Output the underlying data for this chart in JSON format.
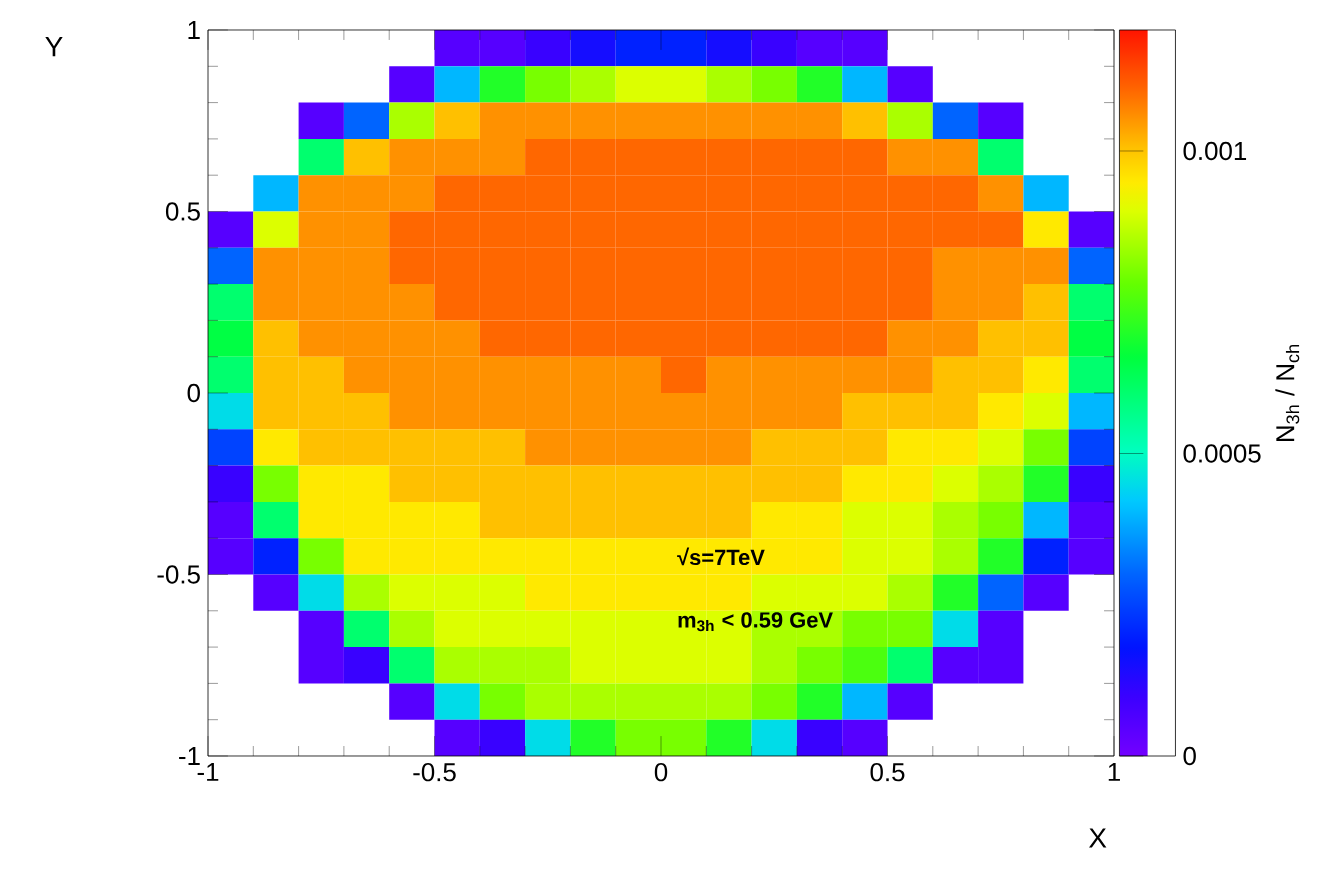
{
  "chart_data": {
    "type": "heatmap",
    "xlabel": "X",
    "ylabel": "Y",
    "clabel": "N$_{3h}$ / N$_{ch}$",
    "x": [
      -0.95,
      -0.85,
      -0.75,
      -0.65,
      -0.55,
      -0.45,
      -0.35,
      -0.25,
      -0.15,
      -0.05,
      0.05,
      0.15,
      0.25,
      0.35,
      0.45,
      0.55,
      0.65,
      0.75,
      0.85,
      0.95
    ],
    "y": [
      0.95,
      0.85,
      0.75,
      0.65,
      0.55,
      0.45,
      0.35,
      0.25,
      0.15,
      0.05,
      -0.05,
      -0.15,
      -0.25,
      -0.35,
      -0.45,
      -0.55,
      -0.65,
      -0.75,
      -0.85,
      -0.95
    ],
    "xlim": [
      -1,
      1
    ],
    "ylim": [
      -1,
      1
    ],
    "xticks": [
      -1,
      -0.5,
      0,
      0.5,
      1
    ],
    "yticks": [
      -1,
      -0.5,
      0,
      0.5,
      1
    ],
    "clim": [
      0,
      0.0012
    ],
    "cticks": [
      0,
      0.0005,
      0.001
    ],
    "annotations": [
      "√s=7TeV",
      "m$_{3h}$ < 0.59 GeV"
    ],
    "cells": [
      [
        null,
        null,
        null,
        null,
        null,
        5e-05,
        5e-05,
        0.0001,
        0.00015,
        0.0002,
        0.0002,
        0.00015,
        0.0001,
        5e-05,
        5e-05,
        null,
        null,
        null,
        null,
        null
      ],
      [
        null,
        null,
        null,
        null,
        5e-05,
        0.0004,
        0.0007,
        0.0008,
        0.00085,
        0.0009,
        0.0009,
        0.00085,
        0.0008,
        0.0007,
        0.0004,
        5e-05,
        null,
        null,
        null,
        null
      ],
      [
        null,
        null,
        5e-05,
        0.0003,
        0.00085,
        0.001,
        0.00105,
        0.00105,
        0.00105,
        0.00105,
        0.00105,
        0.00105,
        0.00105,
        0.00105,
        0.001,
        0.00085,
        0.0003,
        5e-05,
        null,
        null
      ],
      [
        null,
        null,
        0.0006,
        0.001,
        0.00105,
        0.00105,
        0.00105,
        0.0011,
        0.0011,
        0.0011,
        0.0011,
        0.0011,
        0.0011,
        0.0011,
        0.0011,
        0.00105,
        0.00105,
        0.0006,
        null,
        null
      ],
      [
        null,
        0.0004,
        0.00105,
        0.00105,
        0.00105,
        0.0011,
        0.0011,
        0.0011,
        0.0011,
        0.0011,
        0.0011,
        0.0011,
        0.0011,
        0.0011,
        0.0011,
        0.0011,
        0.0011,
        0.00105,
        0.0004,
        null
      ],
      [
        5e-05,
        0.0009,
        0.00105,
        0.00105,
        0.0011,
        0.0011,
        0.0011,
        0.0011,
        0.0011,
        0.0011,
        0.0011,
        0.0011,
        0.0011,
        0.0011,
        0.0011,
        0.0011,
        0.0011,
        0.0011,
        0.00095,
        5e-05
      ],
      [
        0.0003,
        0.00105,
        0.00105,
        0.00105,
        0.0011,
        0.0011,
        0.0011,
        0.0011,
        0.0011,
        0.0011,
        0.0011,
        0.0011,
        0.0011,
        0.0011,
        0.0011,
        0.0011,
        0.00105,
        0.00105,
        0.00105,
        0.0003
      ],
      [
        0.0006,
        0.00105,
        0.00105,
        0.00105,
        0.00105,
        0.0011,
        0.0011,
        0.0011,
        0.0011,
        0.0011,
        0.0011,
        0.0011,
        0.0011,
        0.0011,
        0.0011,
        0.0011,
        0.00105,
        0.00105,
        0.001,
        0.0006
      ],
      [
        0.00065,
        0.001,
        0.00105,
        0.00105,
        0.00105,
        0.00105,
        0.0011,
        0.0011,
        0.0011,
        0.0011,
        0.0011,
        0.0011,
        0.0011,
        0.0011,
        0.0011,
        0.00105,
        0.00105,
        0.001,
        0.001,
        0.00065
      ],
      [
        0.0006,
        0.001,
        0.001,
        0.00105,
        0.00105,
        0.00105,
        0.00105,
        0.00105,
        0.00105,
        0.00105,
        0.0011,
        0.00105,
        0.00105,
        0.00105,
        0.00105,
        0.00105,
        0.001,
        0.001,
        0.00095,
        0.0006
      ],
      [
        0.00045,
        0.001,
        0.001,
        0.001,
        0.00105,
        0.00105,
        0.00105,
        0.00105,
        0.00105,
        0.00105,
        0.00105,
        0.00105,
        0.00105,
        0.00105,
        0.001,
        0.001,
        0.001,
        0.00095,
        0.0009,
        0.0004
      ],
      [
        0.00025,
        0.00095,
        0.001,
        0.001,
        0.001,
        0.001,
        0.001,
        0.00105,
        0.00105,
        0.00105,
        0.00105,
        0.00105,
        0.001,
        0.001,
        0.001,
        0.00095,
        0.00095,
        0.0009,
        0.0008,
        0.00025
      ],
      [
        0.0001,
        0.0008,
        0.00095,
        0.00095,
        0.001,
        0.001,
        0.001,
        0.001,
        0.001,
        0.001,
        0.001,
        0.001,
        0.001,
        0.001,
        0.00095,
        0.00095,
        0.0009,
        0.00085,
        0.0007,
        0.0001
      ],
      [
        5e-05,
        0.0006,
        0.00095,
        0.00095,
        0.00095,
        0.00095,
        0.001,
        0.001,
        0.001,
        0.001,
        0.001,
        0.001,
        0.00095,
        0.00095,
        0.0009,
        0.0009,
        0.00085,
        0.0008,
        0.0004,
        5e-05
      ],
      [
        5e-05,
        0.0002,
        0.0008,
        0.00095,
        0.00095,
        0.00095,
        0.00095,
        0.00095,
        0.00095,
        0.00095,
        0.00095,
        0.00095,
        0.00095,
        0.00095,
        0.0009,
        0.0009,
        0.00085,
        0.0007,
        0.0002,
        5e-05
      ],
      [
        null,
        5e-05,
        0.00045,
        0.00085,
        0.0009,
        0.0009,
        0.0009,
        0.00095,
        0.00095,
        0.00095,
        0.00095,
        0.00095,
        0.0009,
        0.0009,
        0.0009,
        0.00085,
        0.0007,
        0.0003,
        5e-05,
        null
      ],
      [
        null,
        null,
        5e-05,
        0.0006,
        0.00085,
        0.0009,
        0.0009,
        0.0009,
        0.0009,
        0.0009,
        0.0009,
        0.0009,
        0.00085,
        0.00085,
        0.0008,
        0.0008,
        0.00045,
        5e-05,
        null,
        null
      ],
      [
        null,
        null,
        5e-05,
        0.0001,
        0.0006,
        0.00085,
        0.00085,
        0.00085,
        0.0009,
        0.0009,
        0.0009,
        0.0009,
        0.00085,
        0.0008,
        0.00075,
        0.0006,
        5e-05,
        5e-05,
        null,
        null
      ],
      [
        null,
        null,
        null,
        null,
        5e-05,
        0.00045,
        0.0008,
        0.00085,
        0.00085,
        0.00085,
        0.00085,
        0.00085,
        0.0008,
        0.0007,
        0.0004,
        5e-05,
        null,
        null,
        null,
        null
      ],
      [
        null,
        null,
        null,
        null,
        null,
        5e-05,
        0.0001,
        0.00045,
        0.0007,
        0.0008,
        0.0008,
        0.0007,
        0.00045,
        0.0001,
        5e-05,
        null,
        null,
        null,
        null,
        null
      ]
    ]
  }
}
